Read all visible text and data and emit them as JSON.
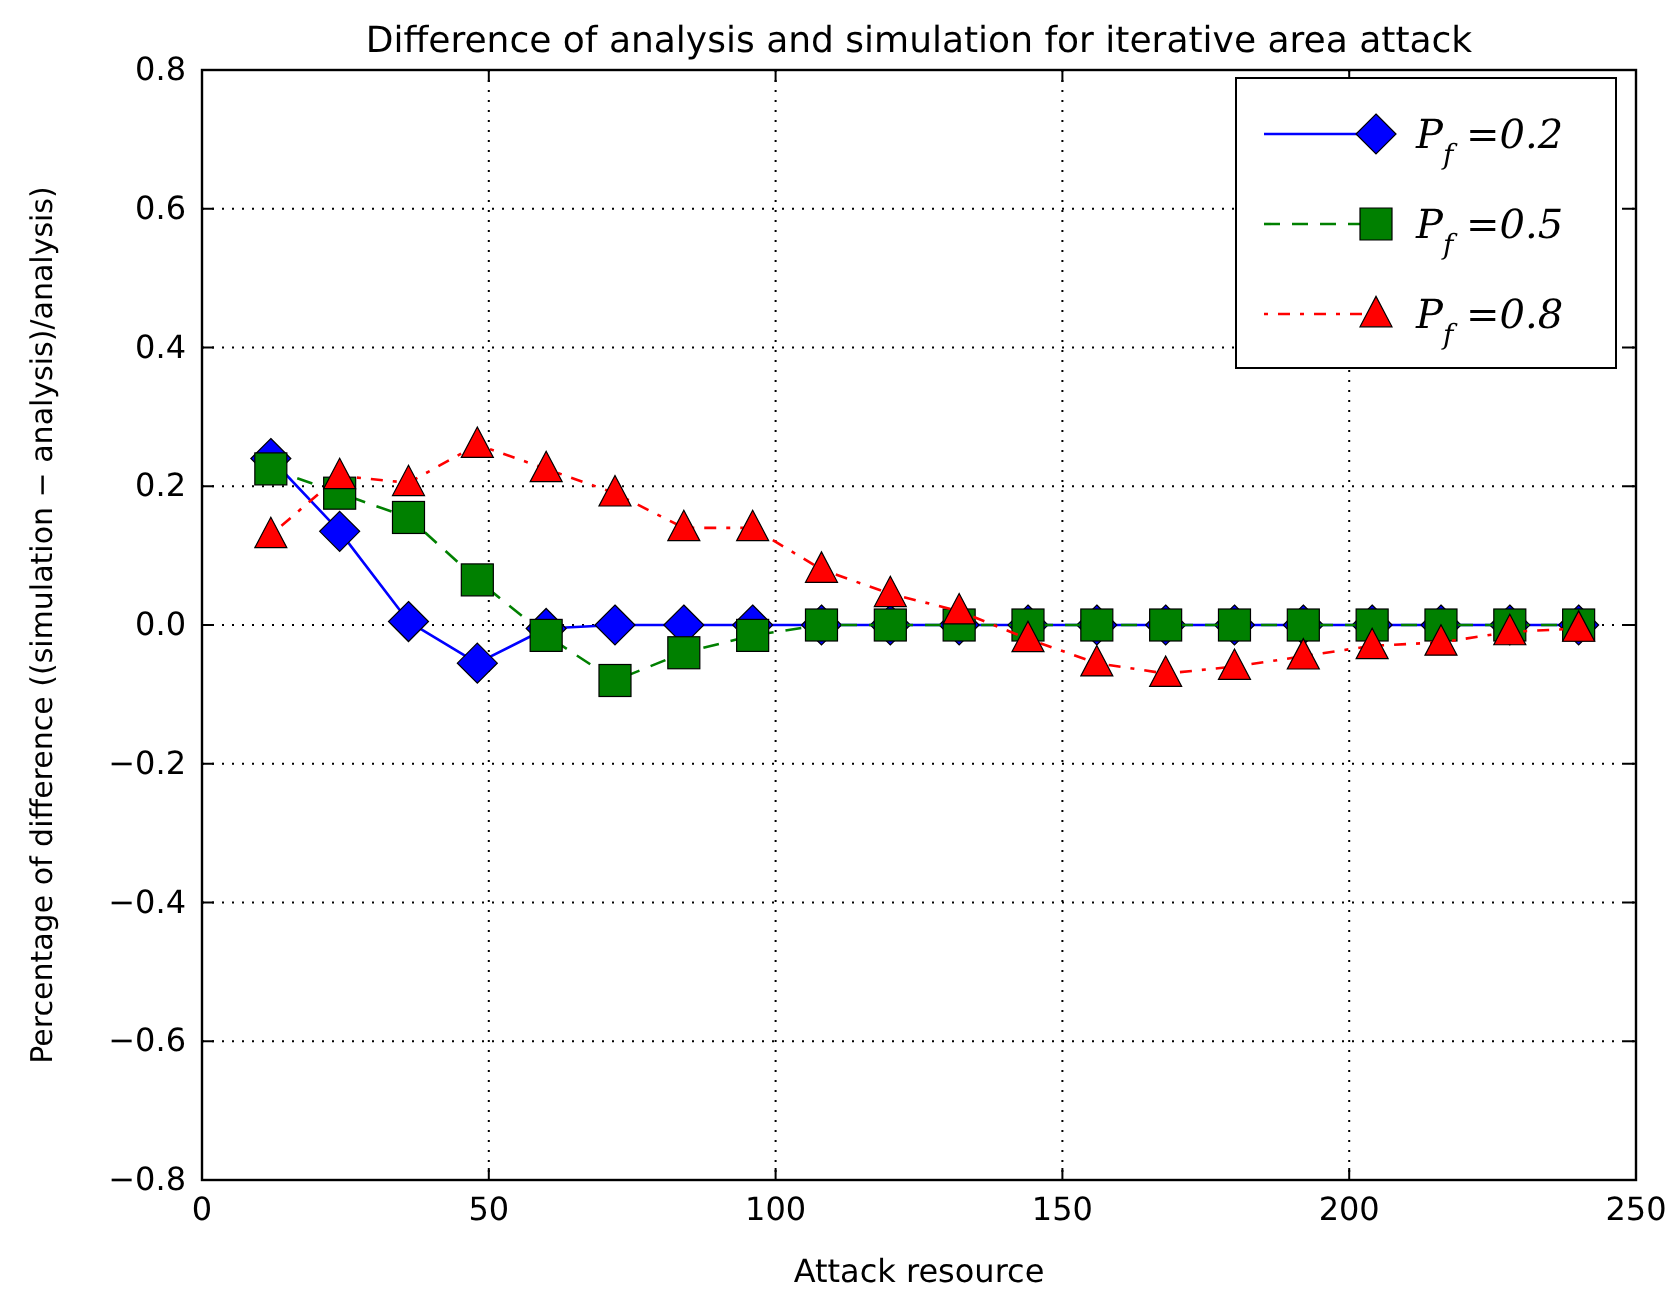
{
  "chart_data": {
    "type": "line",
    "title": "Difference of analysis and simulation for iterative area attack",
    "xlabel": "Attack resource",
    "ylabel": "Percentage of difference ((simulation − analysis)/analysis)",
    "x": [
      12,
      24,
      36,
      48,
      60,
      72,
      84,
      96,
      108,
      120,
      132,
      144,
      156,
      168,
      180,
      192,
      204,
      216,
      228,
      240
    ],
    "series": [
      {
        "name": "P$_{f}$ =0.2",
        "color": "#0000ff",
        "marker": "diamond",
        "line_style": "solid",
        "values": [
          0.24,
          0.135,
          0.005,
          -0.055,
          -0.005,
          0,
          0,
          0,
          0,
          0,
          0,
          0,
          0,
          0,
          0,
          0,
          0,
          0,
          0,
          0
        ]
      },
      {
        "name": "P$_{f}$ =0.5",
        "color": "#008000",
        "marker": "square",
        "line_style": "dashed",
        "values": [
          0.225,
          0.19,
          0.155,
          0.065,
          -0.015,
          -0.08,
          -0.04,
          -0.015,
          0,
          0,
          0,
          0,
          0,
          0,
          0,
          0,
          0,
          0,
          0,
          0
        ]
      },
      {
        "name": "P$_{f}$ =0.8",
        "color": "#ff0000",
        "marker": "triangle",
        "line_style": "dotted",
        "values": [
          0.13,
          0.215,
          0.205,
          0.26,
          0.225,
          0.19,
          0.14,
          0.14,
          0.08,
          0.045,
          0.02,
          -0.02,
          -0.055,
          -0.07,
          -0.06,
          -0.045,
          -0.03,
          -0.025,
          -0.01,
          -0.005
        ]
      }
    ],
    "xlim": [
      0,
      250
    ],
    "xticks": [
      0,
      50,
      100,
      150,
      200,
      250
    ],
    "ylim": [
      -0.8,
      0.8
    ],
    "yticks": [
      {
        "value": -0.8,
        "label": "−0.8"
      },
      {
        "value": -0.6,
        "label": "−0.6"
      },
      {
        "value": -0.4,
        "label": "−0.4"
      },
      {
        "value": -0.2,
        "label": "−0.2"
      },
      {
        "value": 0,
        "label": "0.0"
      },
      {
        "value": 0.2,
        "label": "0.2"
      },
      {
        "value": 0.4,
        "label": "0.4"
      },
      {
        "value": 0.6,
        "label": "0.6"
      },
      {
        "value": 0.8,
        "label": "0.8"
      }
    ],
    "grid": true,
    "legend": "top right"
  }
}
